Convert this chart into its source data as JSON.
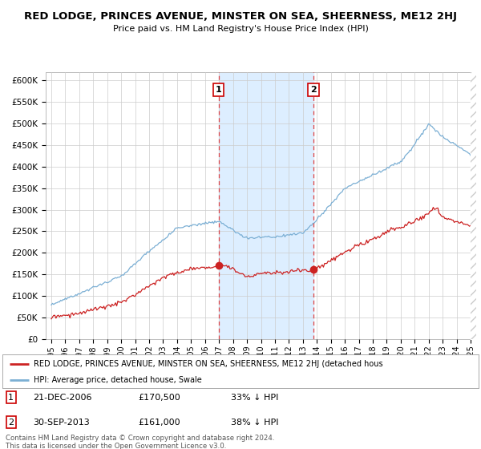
{
  "title": "RED LODGE, PRINCES AVENUE, MINSTER ON SEA, SHEERNESS, ME12 2HJ",
  "subtitle": "Price paid vs. HM Land Registry's House Price Index (HPI)",
  "ylim": [
    0,
    620000
  ],
  "yticks": [
    0,
    50000,
    100000,
    150000,
    200000,
    250000,
    300000,
    350000,
    400000,
    450000,
    500000,
    550000,
    600000
  ],
  "ytick_labels": [
    "£0",
    "£50K",
    "£100K",
    "£150K",
    "£200K",
    "£250K",
    "£300K",
    "£350K",
    "£400K",
    "£450K",
    "£500K",
    "£550K",
    "£600K"
  ],
  "hpi_color": "#7bafd4",
  "property_color": "#cc2222",
  "dashed_color": "#dd4444",
  "fill_color": "#ddeeff",
  "point1_x": 2006.97,
  "point1_y": 170500,
  "point2_x": 2013.75,
  "point2_y": 161000,
  "xlim_left": 1994.6,
  "xlim_right": 2025.4,
  "legend_property": "RED LODGE, PRINCES AVENUE, MINSTER ON SEA, SHEERNESS, ME12 2HJ (detached hous",
  "legend_hpi": "HPI: Average price, detached house, Swale",
  "footer": "Contains HM Land Registry data © Crown copyright and database right 2024.\nThis data is licensed under the Open Government Licence v3.0.",
  "background_color": "#ffffff",
  "grid_color": "#cccccc",
  "hatch_color": "#cccccc"
}
